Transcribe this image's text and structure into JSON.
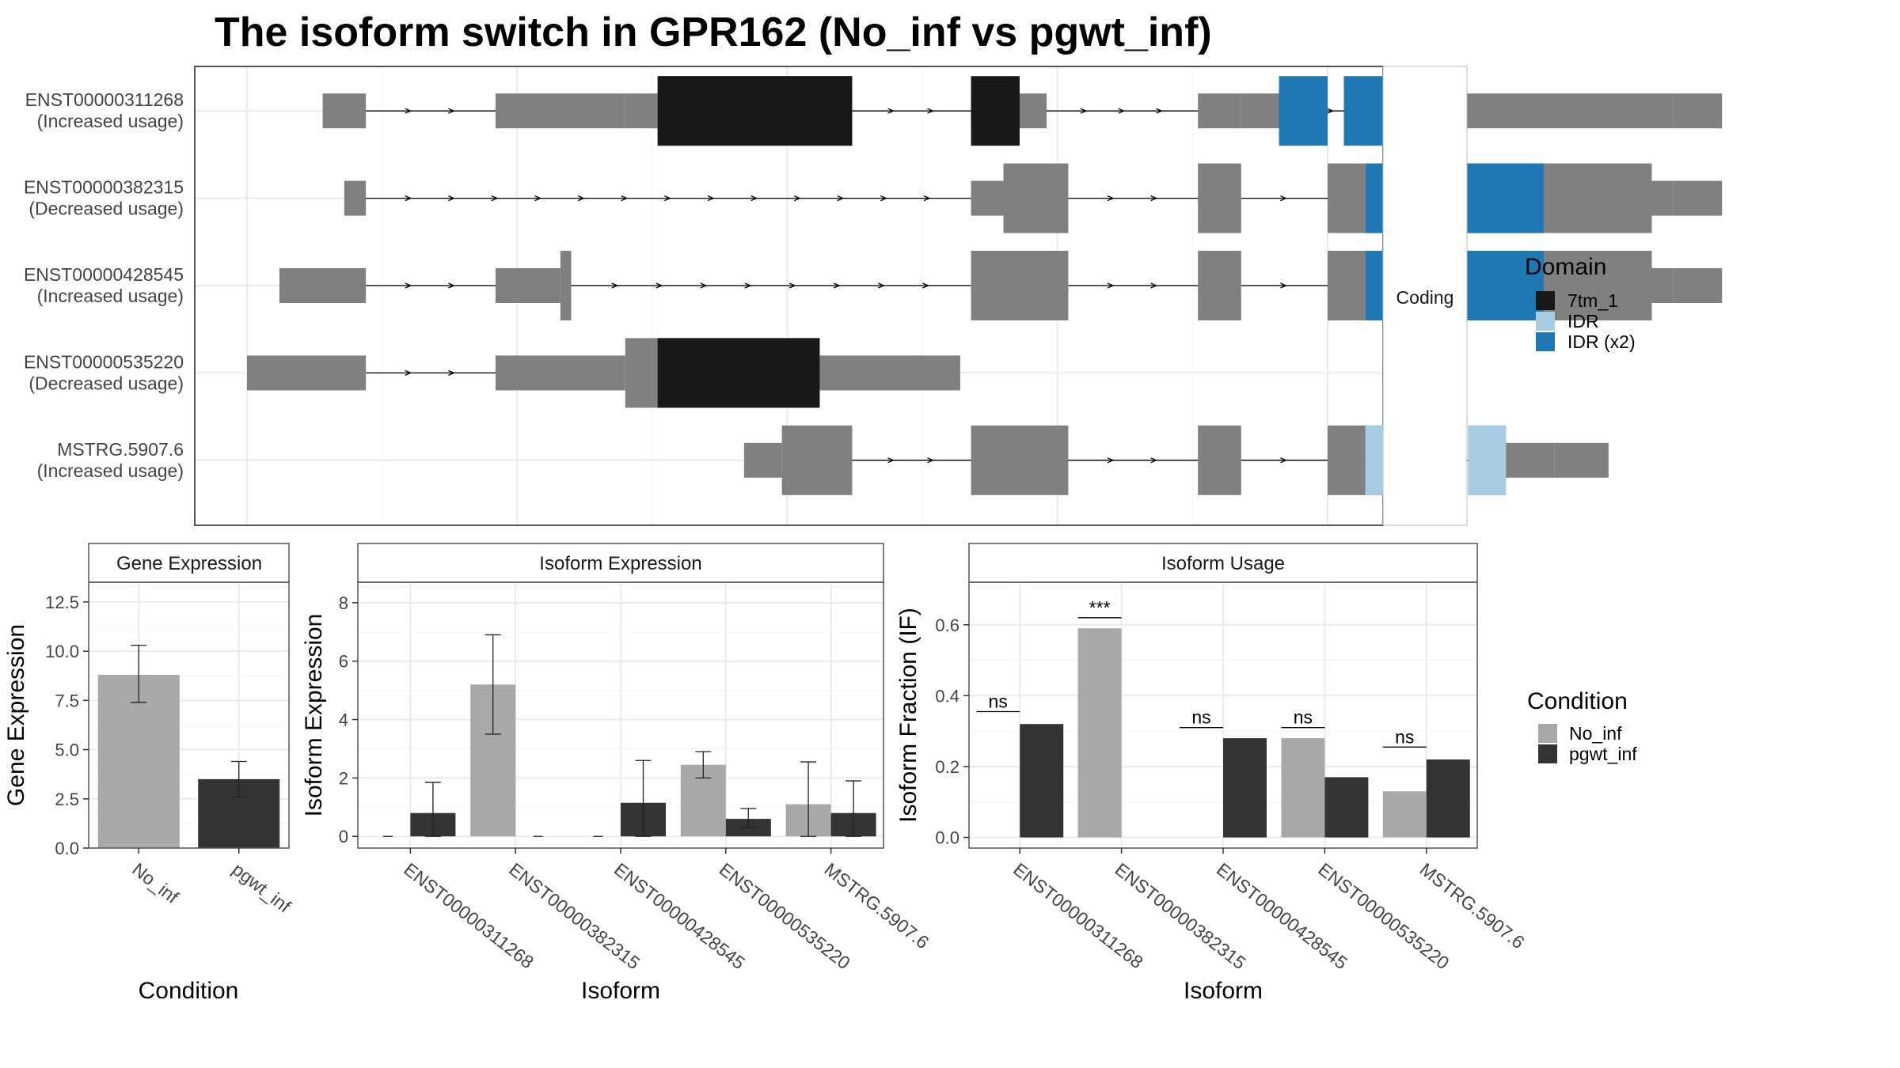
{
  "title": "The isoform switch in GPR162 (No_inf vs pgwt_inf)",
  "colors": {
    "exon": "#808080",
    "domain_7tm_1": "#181818",
    "domain_IDR": "#a6cde3",
    "domain_IDR_x2": "#1f78b4",
    "no_inf": "#a9a9a9",
    "pgwt_inf": "#333333",
    "frame": "#555555",
    "grid": "#ebebeb"
  },
  "structure": {
    "strip_label": "Coding",
    "legend_title": "Domain",
    "legend_items": [
      {
        "label": "7tm_1",
        "color": "#181818"
      },
      {
        "label": "IDR",
        "color": "#a6cde3"
      },
      {
        "label": "IDR (x2)",
        "color": "#1f78b4"
      }
    ],
    "coordinate_range": [
      0,
      1000
    ],
    "isoforms": [
      {
        "id": "ENST00000311268",
        "status": "(Increased usage)",
        "exons": [
          [
            70,
            110,
            "u"
          ],
          [
            230,
            350,
            "u"
          ],
          [
            350,
            380,
            "u"
          ],
          [
            380,
            560,
            "c"
          ],
          [
            670,
            740,
            "u"
          ],
          [
            880,
            920,
            "u"
          ],
          [
            920,
            970,
            "u"
          ],
          [
            1070,
            1120,
            "u"
          ],
          [
            1120,
            1300,
            "u"
          ],
          [
            1300,
            1320,
            "u"
          ],
          [
            1320,
            1365,
            "u"
          ]
        ],
        "domains": [
          [
            380,
            560,
            "7tm_1"
          ],
          [
            670,
            715,
            "7tm_1"
          ],
          [
            955,
            1000,
            "IDR (x2)"
          ],
          [
            1015,
            1120,
            "IDR (x2)"
          ]
        ]
      },
      {
        "id": "ENST00000382315",
        "status": "(Decreased usage)",
        "exons": [
          [
            90,
            110,
            "u"
          ],
          [
            670,
            700,
            "u"
          ],
          [
            700,
            760,
            "c"
          ],
          [
            880,
            920,
            "c"
          ],
          [
            1000,
            1035,
            "c"
          ],
          [
            1035,
            1300,
            "c"
          ],
          [
            1300,
            1320,
            "u"
          ],
          [
            1320,
            1365,
            "u"
          ]
        ],
        "domains": [
          [
            1035,
            1085,
            "IDR (x2)"
          ],
          [
            1100,
            1200,
            "IDR (x2)"
          ]
        ]
      },
      {
        "id": "ENST00000428545",
        "status": "(Increased usage)",
        "exons": [
          [
            30,
            110,
            "u"
          ],
          [
            230,
            290,
            "u"
          ],
          [
            290,
            300,
            "c"
          ],
          [
            670,
            760,
            "c"
          ],
          [
            880,
            920,
            "c"
          ],
          [
            1000,
            1035,
            "c"
          ],
          [
            1035,
            1300,
            "c"
          ],
          [
            1300,
            1320,
            "u"
          ],
          [
            1320,
            1365,
            "u"
          ]
        ],
        "domains": [
          [
            1035,
            1085,
            "IDR (x2)"
          ],
          [
            1100,
            1200,
            "IDR (x2)"
          ]
        ]
      },
      {
        "id": "ENST00000535220",
        "status": "(Decreased usage)",
        "exons": [
          [
            0,
            110,
            "u"
          ],
          [
            230,
            350,
            "u"
          ],
          [
            350,
            530,
            "c"
          ],
          [
            530,
            600,
            "u"
          ],
          [
            600,
            660,
            "u"
          ]
        ],
        "domains": [
          [
            380,
            530,
            "7tm_1"
          ]
        ]
      },
      {
        "id": "MSTRG.5907.6",
        "status": "(Increased usage)",
        "exons": [
          [
            460,
            495,
            "u"
          ],
          [
            495,
            560,
            "c"
          ],
          [
            670,
            760,
            "c"
          ],
          [
            880,
            920,
            "c"
          ],
          [
            1000,
            1035,
            "c"
          ],
          [
            1035,
            1065,
            "c"
          ],
          [
            1130,
            1165,
            "c"
          ],
          [
            1165,
            1210,
            "u"
          ],
          [
            1210,
            1260,
            "u"
          ]
        ],
        "domains": [
          [
            1035,
            1065,
            "IDR"
          ],
          [
            1130,
            1165,
            "IDR"
          ]
        ]
      }
    ]
  },
  "chart_data": [
    {
      "type": "bar",
      "title": "Gene Expression",
      "xlabel": "Condition",
      "ylabel": "Gene Expression",
      "categories": [
        "No_inf",
        "pgwt_inf"
      ],
      "values": [
        8.8,
        3.5
      ],
      "error_low": [
        7.4,
        2.6
      ],
      "error_high": [
        10.3,
        4.4
      ],
      "ylim": [
        0,
        13.5
      ],
      "yticks": [
        "0.0",
        "2.5",
        "5.0",
        "7.5",
        "10.0",
        "12.5"
      ],
      "ytick_values": [
        0,
        2.5,
        5,
        7.5,
        10,
        12.5
      ]
    },
    {
      "type": "bar",
      "title": "Isoform Expression",
      "xlabel": "Isoform",
      "ylabel": "Isoform Expression",
      "categories": [
        "ENST00000311268",
        "ENST00000382315",
        "ENST00000428545",
        "ENST00000535220",
        "MSTRG.5907.6"
      ],
      "series": [
        {
          "name": "No_inf",
          "values": [
            0,
            5.2,
            0,
            2.45,
            1.1
          ],
          "error_low": [
            0,
            3.5,
            0,
            2.0,
            0
          ],
          "error_high": [
            0,
            6.9,
            0,
            2.9,
            2.55
          ]
        },
        {
          "name": "pgwt_inf",
          "values": [
            0.8,
            0,
            1.15,
            0.6,
            0.8
          ],
          "error_low": [
            0,
            0,
            0,
            0.3,
            0
          ],
          "error_high": [
            1.85,
            0,
            2.6,
            0.95,
            1.9
          ]
        }
      ],
      "ylim": [
        -0.4,
        8.7
      ],
      "yticks": [
        "0",
        "2",
        "4",
        "6",
        "8"
      ],
      "ytick_values": [
        0,
        2,
        4,
        6,
        8
      ]
    },
    {
      "type": "bar",
      "title": "Isoform Usage",
      "xlabel": "Isoform",
      "ylabel": "Isoform Fraction (IF)",
      "categories": [
        "ENST00000311268",
        "ENST00000382315",
        "ENST00000428545",
        "ENST00000535220",
        "MSTRG.5907.6"
      ],
      "series": [
        {
          "name": "No_inf",
          "values": [
            0,
            0.59,
            0,
            0.28,
            0.13
          ]
        },
        {
          "name": "pgwt_inf",
          "values": [
            0.32,
            0,
            0.28,
            0.17,
            0.22
          ]
        }
      ],
      "significance": [
        "ns",
        "***",
        "ns",
        "ns",
        "ns"
      ],
      "significance_y": [
        0.355,
        0.62,
        0.31,
        0.31,
        0.255
      ],
      "ylim": [
        -0.03,
        0.72
      ],
      "yticks": [
        "0.0",
        "0.2",
        "0.4",
        "0.6"
      ],
      "ytick_values": [
        0,
        0.2,
        0.4,
        0.6
      ]
    }
  ],
  "condition_legend": {
    "title": "Condition",
    "items": [
      {
        "label": "No_inf",
        "color": "#a9a9a9"
      },
      {
        "label": "pgwt_inf",
        "color": "#333333"
      }
    ]
  }
}
